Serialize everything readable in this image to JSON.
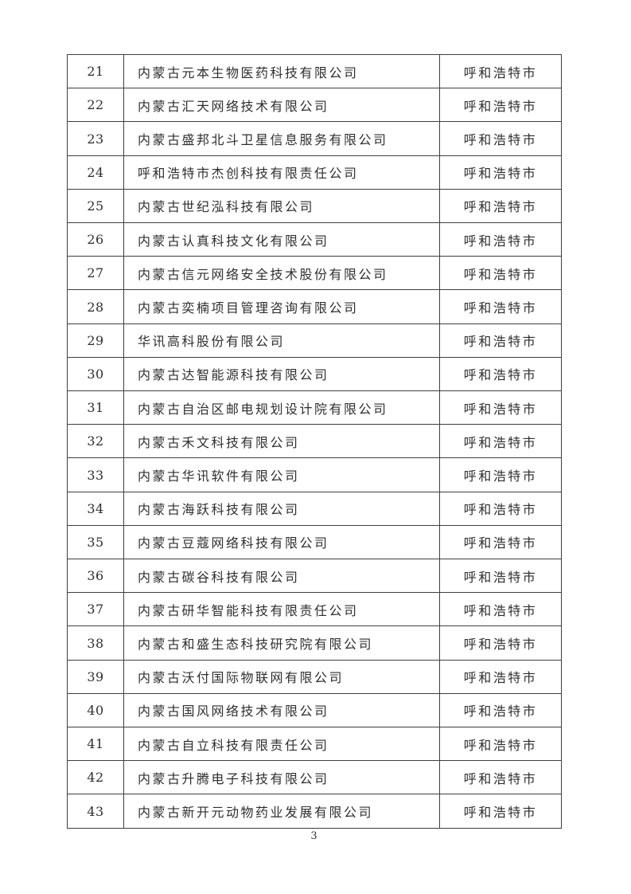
{
  "page": {
    "number": "3"
  },
  "table": {
    "rows": [
      {
        "no": "21",
        "company": "内蒙古元本生物医药科技有限公司",
        "city": "呼和浩特市"
      },
      {
        "no": "22",
        "company": "内蒙古汇天网络技术有限公司",
        "city": "呼和浩特市"
      },
      {
        "no": "23",
        "company": "内蒙古盛邦北斗卫星信息服务有限公司",
        "city": "呼和浩特市"
      },
      {
        "no": "24",
        "company": "呼和浩特市杰创科技有限责任公司",
        "city": "呼和浩特市"
      },
      {
        "no": "25",
        "company": "内蒙古世纪泓科技有限公司",
        "city": "呼和浩特市"
      },
      {
        "no": "26",
        "company": "内蒙古认真科技文化有限公司",
        "city": "呼和浩特市"
      },
      {
        "no": "27",
        "company": "内蒙古信元网络安全技术股份有限公司",
        "city": "呼和浩特市"
      },
      {
        "no": "28",
        "company": "内蒙古奕楠项目管理咨询有限公司",
        "city": "呼和浩特市"
      },
      {
        "no": "29",
        "company": "华讯高科股份有限公司",
        "city": "呼和浩特市"
      },
      {
        "no": "30",
        "company": "内蒙古达智能源科技有限公司",
        "city": "呼和浩特市"
      },
      {
        "no": "31",
        "company": "内蒙古自治区邮电规划设计院有限公司",
        "city": "呼和浩特市"
      },
      {
        "no": "32",
        "company": "内蒙古禾文科技有限公司",
        "city": "呼和浩特市"
      },
      {
        "no": "33",
        "company": "内蒙古华讯软件有限公司",
        "city": "呼和浩特市"
      },
      {
        "no": "34",
        "company": "内蒙古海跃科技有限公司",
        "city": "呼和浩特市"
      },
      {
        "no": "35",
        "company": "内蒙古豆蔻网络科技有限公司",
        "city": "呼和浩特市"
      },
      {
        "no": "36",
        "company": "内蒙古碳谷科技有限公司",
        "city": "呼和浩特市"
      },
      {
        "no": "37",
        "company": "内蒙古研华智能科技有限责任公司",
        "city": "呼和浩特市"
      },
      {
        "no": "38",
        "company": "内蒙古和盛生态科技研究院有限公司",
        "city": "呼和浩特市"
      },
      {
        "no": "39",
        "company": "内蒙古沃付国际物联网有限公司",
        "city": "呼和浩特市"
      },
      {
        "no": "40",
        "company": "内蒙古国风网络技术有限公司",
        "city": "呼和浩特市"
      },
      {
        "no": "41",
        "company": "内蒙古自立科技有限责任公司",
        "city": "呼和浩特市"
      },
      {
        "no": "42",
        "company": "内蒙古升腾电子科技有限公司",
        "city": "呼和浩特市"
      },
      {
        "no": "43",
        "company": "内蒙古新开元动物药业发展有限公司",
        "city": "呼和浩特市"
      }
    ]
  }
}
